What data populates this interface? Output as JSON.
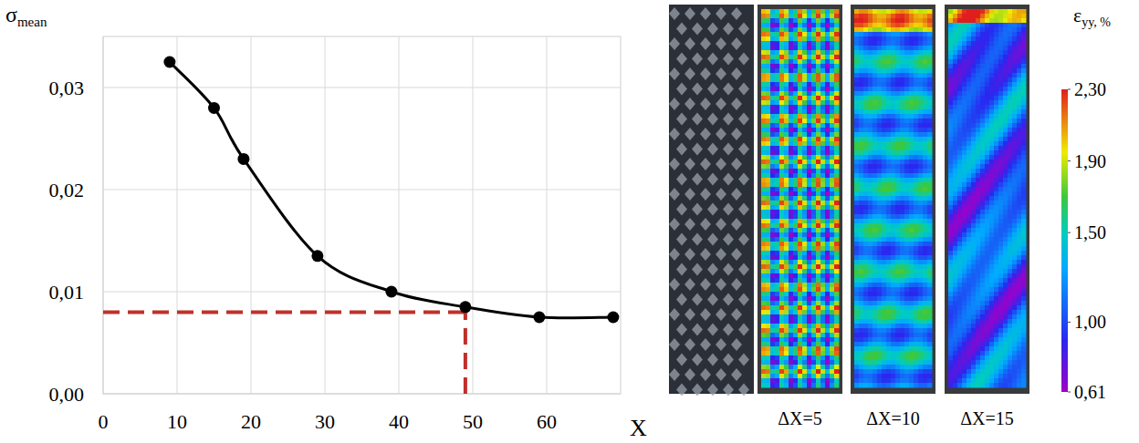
{
  "chart_data": {
    "type": "line",
    "y_label": "σ",
    "y_label_sub": "mean",
    "x_label": "X",
    "x": [
      9,
      15,
      19,
      29,
      39,
      49,
      59,
      69
    ],
    "values": [
      0.0325,
      0.028,
      0.023,
      0.0135,
      0.01,
      0.0085,
      0.0075,
      0.0075
    ],
    "color": "#000000",
    "marker": "circle",
    "xlim": [
      0,
      70
    ],
    "xticks": [
      0,
      10,
      20,
      30,
      40,
      50,
      60
    ],
    "ylim": [
      0,
      0.035
    ],
    "yticks": [
      {
        "value": 0,
        "label": "0,00"
      },
      {
        "value": 0.01,
        "label": "0,01"
      },
      {
        "value": 0.02,
        "label": "0,02"
      },
      {
        "value": 0.03,
        "label": "0,03"
      }
    ],
    "grid": true,
    "annotations": [
      {
        "type": "reference",
        "x": 49,
        "y": 0.008,
        "color": "#c0302a",
        "line_style": "dashed"
      }
    ]
  },
  "strain_maps": {
    "panels": [
      {
        "label": "ΔX=5"
      },
      {
        "label": "ΔX=10"
      },
      {
        "label": "ΔX=15"
      }
    ],
    "colorbar": {
      "title": "ε",
      "title_sub": "yy, %",
      "range": [
        0.61,
        2.3
      ],
      "ticks": [
        {
          "value": 2.3,
          "label": "2,30"
        },
        {
          "value": 1.9,
          "label": "1,90"
        },
        {
          "value": 1.5,
          "label": "1,50"
        },
        {
          "value": 1.0,
          "label": "1,00"
        },
        {
          "value": 0.61,
          "label": "0,61"
        }
      ]
    }
  }
}
